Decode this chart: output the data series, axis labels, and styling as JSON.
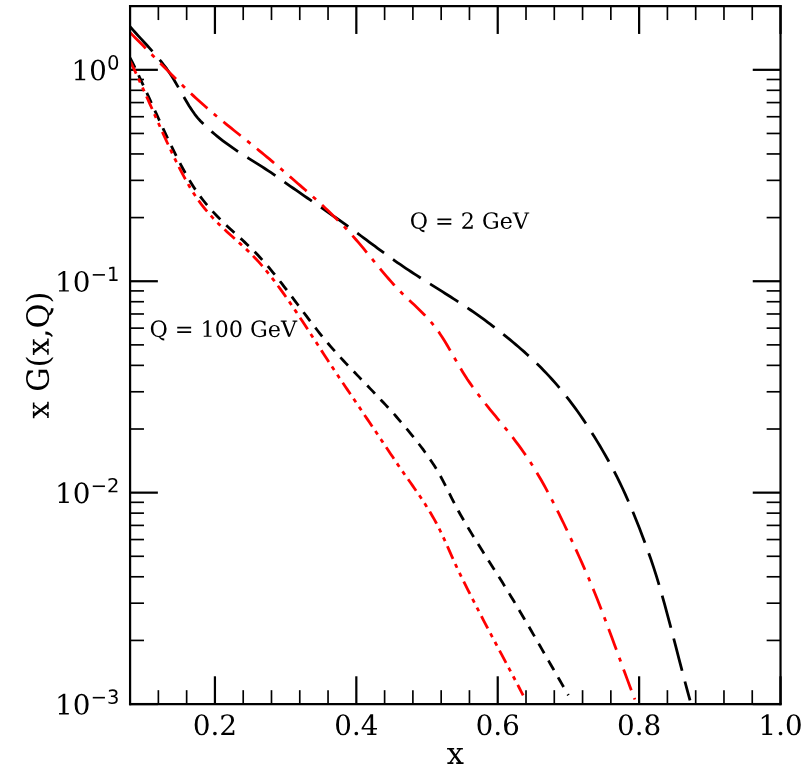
{
  "chart_data": {
    "type": "line",
    "xlabel": "x",
    "ylabel": "x G(x,Q)",
    "log": "y",
    "grid": false,
    "marker": "none",
    "xlim": [
      0.08,
      1.0
    ],
    "xticks": [
      0.2,
      0.4,
      0.6,
      0.8,
      {
        "value": 1.0,
        "label": "1.0"
      }
    ],
    "ylim": [
      0.001,
      2
    ],
    "yticks": [
      {
        "value": 0.001,
        "label": "10$^{−3}$"
      },
      {
        "value": 0.01,
        "label": "10$^{−2}$"
      },
      {
        "value": 0.1,
        "label": "10$^{−1}$"
      },
      {
        "value": 1,
        "label": "10$^{0}$"
      }
    ],
    "annotations": [
      "Q = 2 GeV",
      "Q = 100 GeV"
    ],
    "series": [
      {
        "color": "#000000",
        "line_style": "long dashed",
        "x": [
          0.08,
          0.131,
          0.178,
          0.289,
          0.386,
          0.456,
          0.594,
          0.678,
          0.761,
          0.817,
          0.872
        ],
        "values": [
          1.6,
          1.02,
          0.58,
          0.31,
          0.184,
          0.124,
          0.061,
          0.034,
          0.0133,
          0.0048,
          0.00104
        ]
      },
      {
        "color": "#ff0000",
        "line_style": "dashdot",
        "x": [
          0.08,
          0.178,
          0.289,
          0.381,
          0.456,
          0.511,
          0.558,
          0.65,
          0.725,
          0.794
        ],
        "values": [
          1.5,
          0.71,
          0.35,
          0.184,
          0.094,
          0.061,
          0.034,
          0.0133,
          0.0042,
          0.00105
        ]
      },
      {
        "color": "#000000",
        "line_style": "dashed",
        "x": [
          0.08,
          0.178,
          0.269,
          0.364,
          0.428,
          0.456,
          0.511,
          0.547,
          0.622,
          0.7
        ],
        "values": [
          1.14,
          0.255,
          0.124,
          0.049,
          0.029,
          0.023,
          0.0133,
          0.0079,
          0.0031,
          0.0011
        ]
      },
      {
        "color": "#ff0000",
        "line_style": "dashdotdot",
        "x": [
          0.08,
          0.178,
          0.269,
          0.381,
          0.456,
          0.511,
          0.547,
          0.636
        ],
        "values": [
          1.1,
          0.238,
          0.116,
          0.033,
          0.014,
          0.0074,
          0.0041,
          0.0011
        ]
      }
    ]
  }
}
